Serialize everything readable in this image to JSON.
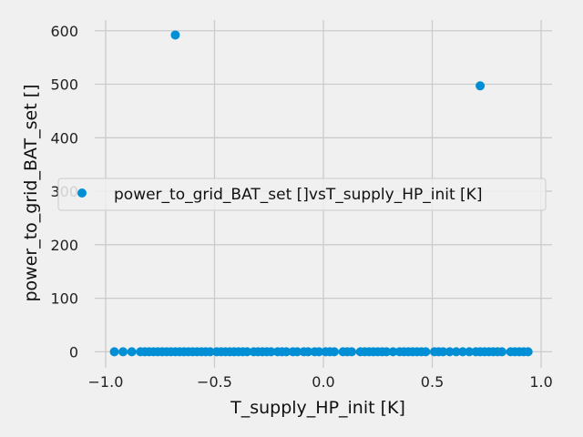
{
  "chart_data": {
    "type": "scatter",
    "title": "",
    "xlabel": "T_supply_HP_init [K]",
    "ylabel": "power_to_grid_BAT_set []",
    "xlim": [
      -1.05,
      1.05
    ],
    "ylim": [
      -30,
      620
    ],
    "xticks": [
      -1.0,
      -0.5,
      0.0,
      0.5,
      1.0
    ],
    "xtick_labels": [
      "−1.0",
      "−0.5",
      "0.0",
      "0.5",
      "1.0"
    ],
    "yticks": [
      0,
      100,
      200,
      300,
      400,
      500,
      600
    ],
    "ytick_labels": [
      "0",
      "100",
      "200",
      "300",
      "400",
      "500",
      "600"
    ],
    "grid": true,
    "legend_position": "center-right",
    "marker_color": "#008fd5",
    "series": [
      {
        "name": "power_to_grid_BAT_set []vsT_supply_HP_init [K]",
        "points": [
          {
            "x": -0.68,
            "y": 592
          },
          {
            "x": 0.72,
            "y": 497
          },
          {
            "x": -0.96,
            "y": 0
          },
          {
            "x": -0.92,
            "y": 0
          },
          {
            "x": -0.88,
            "y": 0
          },
          {
            "x": -0.84,
            "y": 0
          },
          {
            "x": -0.82,
            "y": 0
          },
          {
            "x": -0.8,
            "y": 0
          },
          {
            "x": -0.78,
            "y": 0
          },
          {
            "x": -0.76,
            "y": 0
          },
          {
            "x": -0.74,
            "y": 0
          },
          {
            "x": -0.72,
            "y": 0
          },
          {
            "x": -0.7,
            "y": 0
          },
          {
            "x": -0.68,
            "y": 0
          },
          {
            "x": -0.66,
            "y": 0
          },
          {
            "x": -0.64,
            "y": 0
          },
          {
            "x": -0.62,
            "y": 0
          },
          {
            "x": -0.6,
            "y": 0
          },
          {
            "x": -0.58,
            "y": 0
          },
          {
            "x": -0.56,
            "y": 0
          },
          {
            "x": -0.54,
            "y": 0
          },
          {
            "x": -0.52,
            "y": 0
          },
          {
            "x": -0.49,
            "y": 0
          },
          {
            "x": -0.47,
            "y": 0
          },
          {
            "x": -0.45,
            "y": 0
          },
          {
            "x": -0.43,
            "y": 0
          },
          {
            "x": -0.41,
            "y": 0
          },
          {
            "x": -0.39,
            "y": 0
          },
          {
            "x": -0.37,
            "y": 0
          },
          {
            "x": -0.35,
            "y": 0
          },
          {
            "x": -0.32,
            "y": 0
          },
          {
            "x": -0.3,
            "y": 0
          },
          {
            "x": -0.28,
            "y": 0
          },
          {
            "x": -0.26,
            "y": 0
          },
          {
            "x": -0.24,
            "y": 0
          },
          {
            "x": -0.21,
            "y": 0
          },
          {
            "x": -0.19,
            "y": 0
          },
          {
            "x": -0.17,
            "y": 0
          },
          {
            "x": -0.14,
            "y": 0
          },
          {
            "x": -0.12,
            "y": 0
          },
          {
            "x": -0.09,
            "y": 0
          },
          {
            "x": -0.07,
            "y": 0
          },
          {
            "x": -0.04,
            "y": 0
          },
          {
            "x": -0.02,
            "y": 0
          },
          {
            "x": 0.01,
            "y": 0
          },
          {
            "x": 0.03,
            "y": 0
          },
          {
            "x": 0.05,
            "y": 0
          },
          {
            "x": 0.09,
            "y": 0
          },
          {
            "x": 0.11,
            "y": 0
          },
          {
            "x": 0.13,
            "y": 0
          },
          {
            "x": 0.17,
            "y": 0
          },
          {
            "x": 0.19,
            "y": 0
          },
          {
            "x": 0.21,
            "y": 0
          },
          {
            "x": 0.23,
            "y": 0
          },
          {
            "x": 0.25,
            "y": 0
          },
          {
            "x": 0.27,
            "y": 0
          },
          {
            "x": 0.29,
            "y": 0
          },
          {
            "x": 0.32,
            "y": 0
          },
          {
            "x": 0.35,
            "y": 0
          },
          {
            "x": 0.37,
            "y": 0
          },
          {
            "x": 0.39,
            "y": 0
          },
          {
            "x": 0.41,
            "y": 0
          },
          {
            "x": 0.43,
            "y": 0
          },
          {
            "x": 0.45,
            "y": 0
          },
          {
            "x": 0.47,
            "y": 0
          },
          {
            "x": 0.51,
            "y": 0
          },
          {
            "x": 0.53,
            "y": 0
          },
          {
            "x": 0.55,
            "y": 0
          },
          {
            "x": 0.58,
            "y": 0
          },
          {
            "x": 0.61,
            "y": 0
          },
          {
            "x": 0.64,
            "y": 0
          },
          {
            "x": 0.67,
            "y": 0
          },
          {
            "x": 0.7,
            "y": 0
          },
          {
            "x": 0.72,
            "y": 0
          },
          {
            "x": 0.74,
            "y": 0
          },
          {
            "x": 0.76,
            "y": 0
          },
          {
            "x": 0.78,
            "y": 0
          },
          {
            "x": 0.8,
            "y": 0
          },
          {
            "x": 0.82,
            "y": 0
          },
          {
            "x": 0.86,
            "y": 0
          },
          {
            "x": 0.88,
            "y": 0
          },
          {
            "x": 0.9,
            "y": 0
          },
          {
            "x": 0.92,
            "y": 0
          },
          {
            "x": 0.94,
            "y": 0
          }
        ]
      }
    ]
  }
}
